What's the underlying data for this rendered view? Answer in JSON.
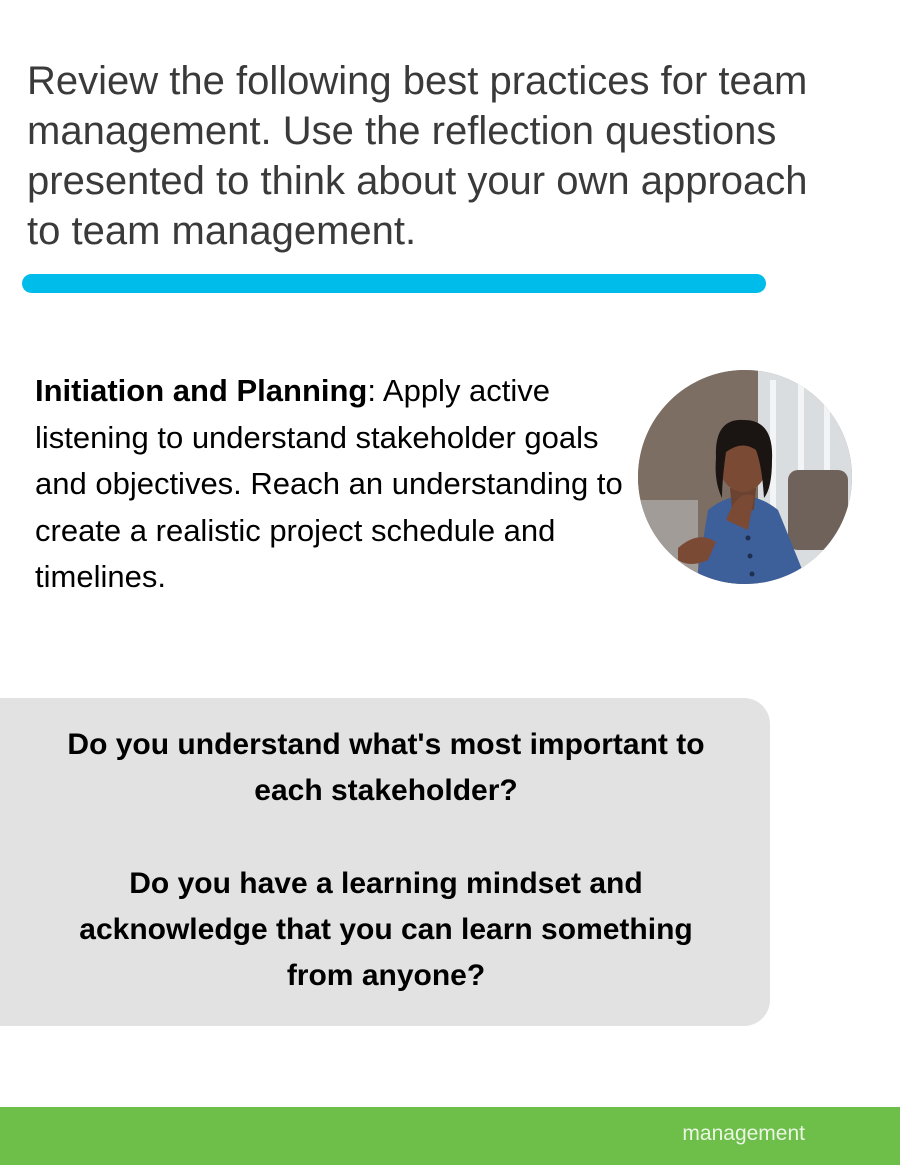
{
  "intro": {
    "text": "Review the following best practices for team management. Use the reflection questions presented to think about your own approach to team management."
  },
  "section": {
    "heading": "Initiation and Planning",
    "separator": ":",
    "body": " Apply active listening to understand stakeholder goals and objectives. Reach an understanding to create a realistic project schedule and timelines."
  },
  "photo": {
    "icon": "person-photo"
  },
  "reflection": {
    "questions": [
      "Do you understand what's most important to each stakeholder?",
      "Do you have a learning mindset and acknowledge that you can learn something from anyone?"
    ]
  },
  "footer": {
    "label": "management"
  },
  "colors": {
    "accent_bar": "#00bceb",
    "reflection_bg": "#e2e2e2",
    "footer_bg": "#6ebe4a"
  }
}
